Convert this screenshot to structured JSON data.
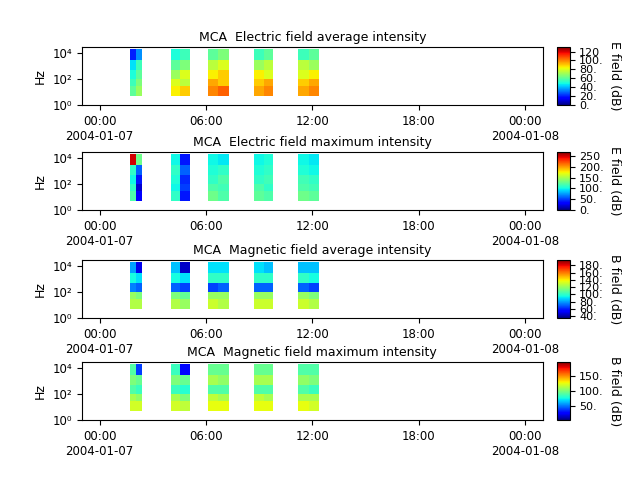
{
  "chart_data": [
    {
      "type": "heatmap",
      "title": "MCA  Electric field average intensity",
      "ylabel": "Hz",
      "log": "y",
      "xlim": [
        -1,
        25
      ],
      "xticks": [
        {
          "value": 0,
          "label": "00:00\n2004-01-07"
        },
        {
          "value": 6,
          "label": "06:00"
        },
        {
          "value": 12,
          "label": "12:00"
        },
        {
          "value": 18,
          "label": "18:00"
        },
        {
          "value": 24,
          "label": "00:00\n2004-01-08"
        }
      ],
      "ylim": [
        1,
        30000
      ],
      "yticks": [
        {
          "value": 1,
          "label": "10⁰"
        },
        {
          "value": 100,
          "label": "10²"
        },
        {
          "value": 10000,
          "label": "10⁴"
        }
      ],
      "colorbar": {
        "label": "E field (dB)",
        "range": [
          0,
          130
        ],
        "ticks": [
          {
            "value": 0,
            "label": "0."
          },
          {
            "value": 20,
            "label": "20."
          },
          {
            "value": 40,
            "label": "40."
          },
          {
            "value": 60,
            "label": "60."
          },
          {
            "value": 80,
            "label": "80."
          },
          {
            "value": 100,
            "label": "100."
          },
          {
            "value": 120,
            "label": "120"
          }
        ]
      },
      "time_blocks": [
        [
          1.7,
          2.4
        ],
        [
          4.0,
          5.1
        ],
        [
          6.1,
          7.3
        ],
        [
          8.7,
          9.8
        ],
        [
          11.2,
          12.4
        ]
      ],
      "freq_edges": [
        5,
        30,
        100,
        500,
        3000,
        20000
      ],
      "cells": [
        [
          [
            60,
            70
          ],
          [
            55,
            65
          ],
          [
            50,
            60
          ],
          [
            45,
            55
          ],
          [
            20,
            35
          ]
        ],
        [
          [
            85,
            90
          ],
          [
            80,
            75
          ],
          [
            70,
            80
          ],
          [
            60,
            65
          ],
          [
            50,
            55
          ]
        ],
        [
          [
            100,
            105
          ],
          [
            95,
            90
          ],
          [
            85,
            90
          ],
          [
            75,
            80
          ],
          [
            60,
            65
          ]
        ],
        [
          [
            95,
            100
          ],
          [
            90,
            95
          ],
          [
            85,
            80
          ],
          [
            70,
            75
          ],
          [
            55,
            60
          ]
        ],
        [
          [
            95,
            100
          ],
          [
            90,
            95
          ],
          [
            80,
            85
          ],
          [
            75,
            70
          ],
          [
            55,
            60
          ]
        ]
      ]
    },
    {
      "type": "heatmap",
      "title": "MCA  Electric field maximum intensity",
      "ylabel": "Hz",
      "log": "y",
      "xlim": [
        -1,
        25
      ],
      "xticks": [
        {
          "value": 0,
          "label": "00:00\n2004-01-07"
        },
        {
          "value": 6,
          "label": "06:00"
        },
        {
          "value": 12,
          "label": "12:00"
        },
        {
          "value": 18,
          "label": "18:00"
        },
        {
          "value": 24,
          "label": "00:00\n2004-01-08"
        }
      ],
      "ylim": [
        1,
        30000
      ],
      "yticks": [
        {
          "value": 1,
          "label": "10⁰"
        },
        {
          "value": 100,
          "label": "10²"
        },
        {
          "value": 10000,
          "label": "10⁴"
        }
      ],
      "colorbar": {
        "label": "E field (dB)",
        "range": [
          0,
          270
        ],
        "ticks": [
          {
            "value": 0,
            "label": "0."
          },
          {
            "value": 50,
            "label": "50."
          },
          {
            "value": 100,
            "label": "100."
          },
          {
            "value": 150,
            "label": "150."
          },
          {
            "value": 200,
            "label": "200."
          },
          {
            "value": 250,
            "label": "250"
          }
        ]
      },
      "time_blocks": [
        [
          1.7,
          2.4
        ],
        [
          4.0,
          5.1
        ],
        [
          6.1,
          7.3
        ],
        [
          8.7,
          9.8
        ],
        [
          11.2,
          12.4
        ]
      ],
      "freq_edges": [
        5,
        30,
        100,
        500,
        3000,
        20000
      ],
      "cells": [
        [
          [
            120,
            30
          ],
          [
            110,
            20
          ],
          [
            100,
            40
          ],
          [
            110,
            60
          ],
          [
            250,
            130
          ]
        ],
        [
          [
            110,
            40
          ],
          [
            100,
            50
          ],
          [
            105,
            45
          ],
          [
            110,
            60
          ],
          [
            100,
            40
          ]
        ],
        [
          [
            130,
            120
          ],
          [
            120,
            115
          ],
          [
            110,
            120
          ],
          [
            105,
            110
          ],
          [
            100,
            95
          ]
        ],
        [
          [
            125,
            120
          ],
          [
            120,
            110
          ],
          [
            110,
            115
          ],
          [
            105,
            110
          ],
          [
            100,
            105
          ]
        ],
        [
          [
            130,
            125
          ],
          [
            120,
            115
          ],
          [
            115,
            110
          ],
          [
            105,
            100
          ],
          [
            100,
            95
          ]
        ]
      ]
    },
    {
      "type": "heatmap",
      "title": "MCA  Magnetic field average intensity",
      "ylabel": "Hz",
      "log": "y",
      "xlim": [
        -1,
        25
      ],
      "xticks": [
        {
          "value": 0,
          "label": "00:00\n2004-01-07"
        },
        {
          "value": 6,
          "label": "06:00"
        },
        {
          "value": 12,
          "label": "12:00"
        },
        {
          "value": 18,
          "label": "18:00"
        },
        {
          "value": 24,
          "label": "00:00\n2004-01-08"
        }
      ],
      "ylim": [
        1,
        30000
      ],
      "yticks": [
        {
          "value": 1,
          "label": "10⁰"
        },
        {
          "value": 100,
          "label": "10²"
        },
        {
          "value": 10000,
          "label": "10⁴"
        }
      ],
      "colorbar": {
        "label": "B field (dB)",
        "range": [
          35,
          195
        ],
        "ticks": [
          {
            "value": 40,
            "label": "40."
          },
          {
            "value": 60,
            "label": "60."
          },
          {
            "value": 80,
            "label": "80."
          },
          {
            "value": 100,
            "label": "100."
          },
          {
            "value": 120,
            "label": "120."
          },
          {
            "value": 140,
            "label": "140."
          },
          {
            "value": 160,
            "label": "160."
          },
          {
            "value": 180,
            "label": "180."
          }
        ]
      },
      "time_blocks": [
        [
          1.7,
          2.4
        ],
        [
          4.0,
          5.1
        ],
        [
          6.1,
          7.3
        ],
        [
          8.7,
          9.8
        ],
        [
          11.2,
          12.4
        ]
      ],
      "freq_edges": [
        5,
        30,
        100,
        500,
        3000,
        20000
      ],
      "cells": [
        [
          [
            125,
            125
          ],
          [
            120,
            115
          ],
          [
            75,
            70
          ],
          [
            95,
            90
          ],
          [
            80,
            50
          ]
        ],
        [
          [
            125,
            120
          ],
          [
            115,
            110
          ],
          [
            70,
            65
          ],
          [
            95,
            90
          ],
          [
            85,
            45
          ]
        ],
        [
          [
            130,
            125
          ],
          [
            120,
            120
          ],
          [
            65,
            70
          ],
          [
            100,
            100
          ],
          [
            90,
            90
          ]
        ],
        [
          [
            130,
            130
          ],
          [
            120,
            120
          ],
          [
            70,
            70
          ],
          [
            100,
            100
          ],
          [
            90,
            85
          ]
        ],
        [
          [
            130,
            125
          ],
          [
            120,
            115
          ],
          [
            70,
            65
          ],
          [
            100,
            95
          ],
          [
            85,
            85
          ]
        ]
      ]
    },
    {
      "type": "heatmap",
      "title": "MCA  Magnetic field maximum intensity",
      "ylabel": "Hz",
      "log": "y",
      "xlim": [
        -1,
        25
      ],
      "xticks": [
        {
          "value": 0,
          "label": "00:00\n2004-01-07"
        },
        {
          "value": 6,
          "label": "06:00"
        },
        {
          "value": 12,
          "label": "12:00"
        },
        {
          "value": 18,
          "label": "18:00"
        },
        {
          "value": 24,
          "label": "00:00\n2004-01-08"
        }
      ],
      "ylim": [
        1,
        30000
      ],
      "yticks": [
        {
          "value": 1,
          "label": "10⁰"
        },
        {
          "value": 100,
          "label": "10²"
        },
        {
          "value": 10000,
          "label": "10⁴"
        }
      ],
      "colorbar": {
        "label": "B field (dB)",
        "range": [
          5,
          195
        ],
        "ticks": [
          {
            "value": 50,
            "label": "50."
          },
          {
            "value": 100,
            "label": "100."
          },
          {
            "value": 150,
            "label": "150."
          }
        ]
      },
      "time_blocks": [
        [
          1.7,
          2.4
        ],
        [
          4.0,
          5.1
        ],
        [
          6.1,
          7.3
        ],
        [
          8.7,
          9.8
        ],
        [
          11.2,
          12.4
        ]
      ],
      "freq_edges": [
        5,
        30,
        100,
        500,
        3000,
        20000
      ],
      "cells": [
        [
          [
            120,
            120
          ],
          [
            110,
            105
          ],
          [
            90,
            85
          ],
          [
            100,
            95
          ],
          [
            90,
            40
          ]
        ],
        [
          [
            120,
            115
          ],
          [
            110,
            100
          ],
          [
            85,
            80
          ],
          [
            100,
            95
          ],
          [
            85,
            30
          ]
        ],
        [
          [
            125,
            125
          ],
          [
            115,
            110
          ],
          [
            90,
            90
          ],
          [
            110,
            105
          ],
          [
            95,
            95
          ]
        ],
        [
          [
            125,
            125
          ],
          [
            115,
            110
          ],
          [
            90,
            90
          ],
          [
            110,
            110
          ],
          [
            95,
            95
          ]
        ],
        [
          [
            125,
            120
          ],
          [
            110,
            110
          ],
          [
            90,
            85
          ],
          [
            105,
            100
          ],
          [
            90,
            90
          ]
        ]
      ]
    }
  ]
}
